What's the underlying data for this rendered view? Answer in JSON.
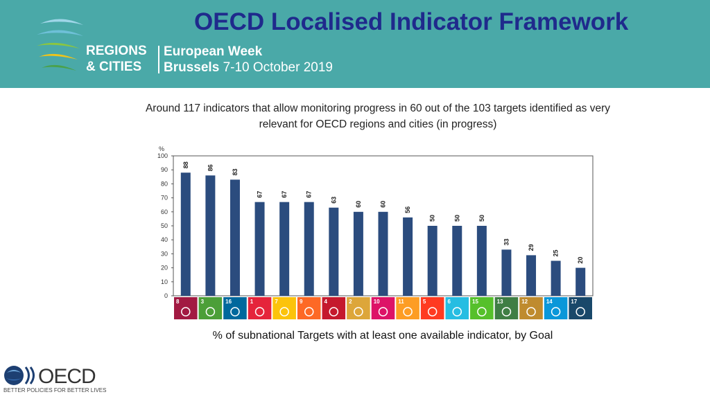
{
  "header": {
    "title": "OECD Localised Indicator Framework",
    "event_line1": "REGIONS",
    "event_line2": "& CITIES",
    "event_week": "European Week",
    "event_city": "Brussels",
    "event_dates": "7-10 October 2019",
    "bg_color": "#4aa9a8",
    "title_color": "#1f2a8c"
  },
  "subtitle": "Around 117 indicators that allow monitoring progress in 60 out of the 103 targets identified as very relevant for OECD regions and cities (in progress)",
  "caption": "% of subnational Targets with at least one available indicator, by Goal",
  "chart_data": {
    "type": "bar",
    "ylabel": "%",
    "ylim": [
      0,
      100
    ],
    "yticks": [
      0,
      10,
      20,
      30,
      40,
      50,
      60,
      70,
      80,
      90,
      100
    ],
    "bar_color": "#2b4c7e",
    "categories": [
      "8",
      "3",
      "16",
      "1",
      "7",
      "9",
      "4",
      "2",
      "10",
      "11",
      "5",
      "6",
      "15",
      "13",
      "12",
      "14",
      "17"
    ],
    "values": [
      88,
      86,
      83,
      67,
      67,
      67,
      63,
      60,
      60,
      56,
      50,
      50,
      50,
      33,
      29,
      25,
      20
    ],
    "goal_colors": [
      "#a21942",
      "#4c9f38",
      "#00689d",
      "#e5243b",
      "#fcc30b",
      "#fd6925",
      "#c5192d",
      "#dda63a",
      "#dd1367",
      "#fd9d24",
      "#ff3a21",
      "#26bde2",
      "#56c02b",
      "#3f7e44",
      "#bf8b2e",
      "#0a97d9",
      "#19486a"
    ]
  },
  "footer": {
    "logo_text": "OECD",
    "tagline": "BETTER POLICIES FOR BETTER LIVES"
  }
}
